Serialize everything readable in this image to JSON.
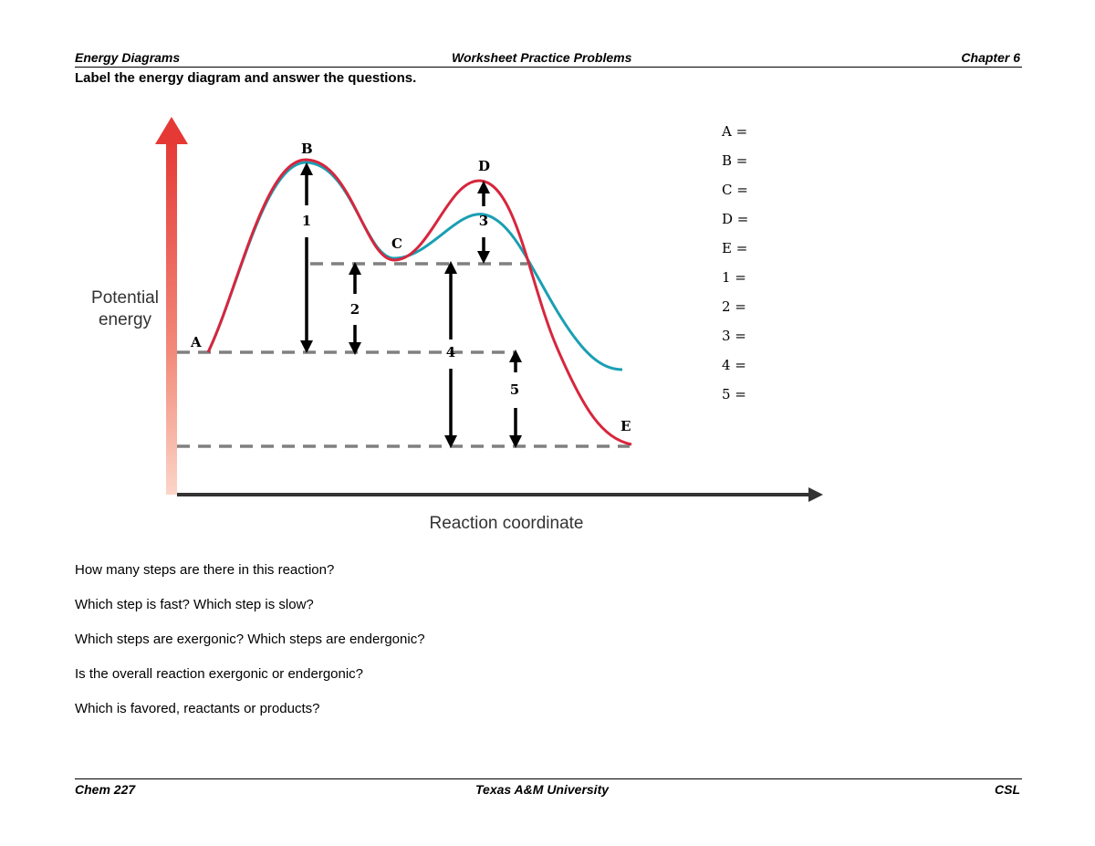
{
  "header": {
    "left": "Energy Diagrams",
    "center": "Worksheet Practice Problems",
    "right": "Chapter 6"
  },
  "instruction": "Label the energy diagram and answer the questions.",
  "diagram": {
    "y_axis_label_line1": "Potential",
    "y_axis_label_line2": "energy",
    "x_axis_label": "Reaction coordinate",
    "point_labels": {
      "A": "A",
      "B": "B",
      "C": "C",
      "D": "D",
      "E": "E"
    },
    "arrow_labels": {
      "1": "1",
      "2": "2",
      "3": "3",
      "4": "4",
      "5": "5"
    },
    "colors": {
      "red_curve": "#d7263d",
      "teal_curve": "#1a9fb3",
      "dash": "#808080",
      "axis": "#333333",
      "y_axis_top": "#e53935",
      "y_axis_bottom": "#fbd5c8"
    }
  },
  "answer_blanks": [
    "A =",
    "B =",
    "C =",
    "D =",
    "E =",
    "1 =",
    "2 =",
    "3 =",
    "4 =",
    "5 ="
  ],
  "questions": [
    "How many steps are there in this reaction?",
    "Which step is fast? Which step is slow?",
    "Which steps are exergonic? Which steps are endergonic?",
    "Is the overall reaction exergonic or endergonic?",
    "Which is favored, reactants or products?"
  ],
  "footer": {
    "left": "Chem 227",
    "center": "Texas A&M University",
    "right": "CSL"
  }
}
